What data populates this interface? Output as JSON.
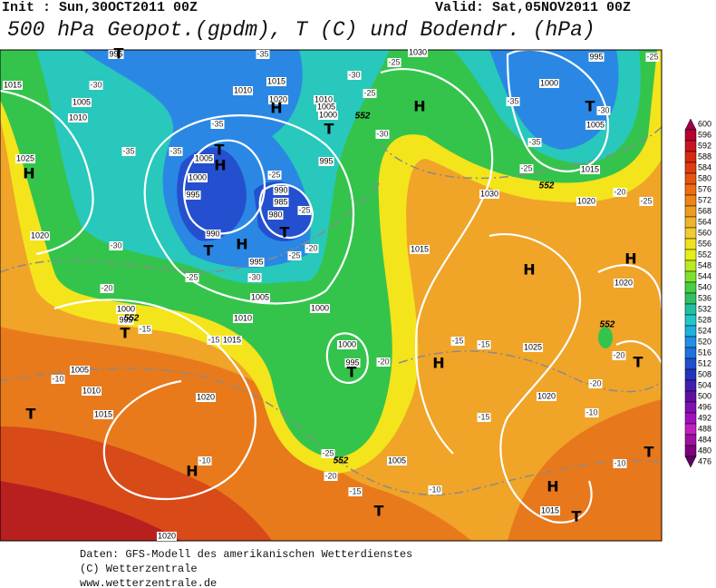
{
  "header": {
    "init": "Init : Sun,30OCT2011 00Z",
    "valid": "Valid: Sat,05NOV2011 00Z",
    "title": "500 hPa Geopot.(gpdm), T (C) und Bodendr. (hPa)"
  },
  "colorbar": {
    "levels": [
      600,
      596,
      592,
      588,
      584,
      580,
      576,
      572,
      568,
      564,
      560,
      556,
      552,
      548,
      544,
      540,
      536,
      532,
      528,
      524,
      520,
      516,
      512,
      508,
      504,
      500,
      496,
      492,
      488,
      484,
      480,
      476
    ],
    "colors": [
      "#a00048",
      "#b80030",
      "#c81420",
      "#d82810",
      "#e03c10",
      "#e85410",
      "#f06c10",
      "#f08418",
      "#f09c20",
      "#f0b428",
      "#f0cc30",
      "#f0e020",
      "#e4f018",
      "#b8ec20",
      "#80e030",
      "#44d040",
      "#30c064",
      "#22c0a0",
      "#22c8c8",
      "#20b0e0",
      "#2090e8",
      "#2070e0",
      "#2050d0",
      "#2434c0",
      "#4020b0",
      "#6010a0",
      "#8010b0",
      "#a010c0",
      "#c020c0",
      "#a010a0",
      "#800080",
      "#600060"
    ]
  },
  "map": {
    "pressure_labels": [
      "995",
      "1015",
      "1005",
      "1010",
      "1025",
      "1020",
      "1010",
      "1015",
      "1020",
      "1010",
      "1005",
      "1000",
      "1005",
      "1000",
      "995",
      "995",
      "990",
      "985",
      "980",
      "990",
      "995",
      "1005",
      "1010",
      "1015",
      "1000",
      "1000",
      "995",
      "1000",
      "995",
      "1005",
      "1010",
      "1015",
      "1020",
      "1030",
      "995",
      "1000",
      "1005",
      "1015",
      "1020",
      "1030",
      "1015",
      "1020",
      "1025",
      "1020",
      "1005",
      "1015",
      "1020"
    ],
    "temperature_labels": [
      "-35",
      "-30",
      "-35",
      "-35",
      "-25",
      "-25",
      "-20",
      "-25",
      "-30",
      "-30",
      "-25",
      "-20",
      "-15",
      "-15",
      "-10",
      "-10",
      "-20",
      "-20",
      "-25",
      "-15",
      "-10",
      "-15",
      "-15",
      "-15",
      "-10",
      "-10",
      "-20",
      "-20",
      "-25",
      "-20",
      "-25",
      "-35",
      "-35",
      "-30",
      "-25",
      "-30",
      "-25",
      "-25",
      "-30",
      "-35"
    ],
    "height_labels": [
      "552",
      "552",
      "552",
      "552",
      "552"
    ],
    "centers": [
      "H",
      "T",
      "H",
      "T",
      "H",
      "T",
      "H",
      "T",
      "H",
      "T",
      "T",
      "T",
      "T",
      "H",
      "T",
      "H",
      "H",
      "H",
      "T",
      "T",
      "H",
      "T",
      "T"
    ]
  },
  "footer": {
    "lines": [
      "Daten: GFS-Modell des amerikanischen Wetterdienstes",
      "(C) Wetterzentrale",
      "www.wetterzentrale.de"
    ]
  }
}
